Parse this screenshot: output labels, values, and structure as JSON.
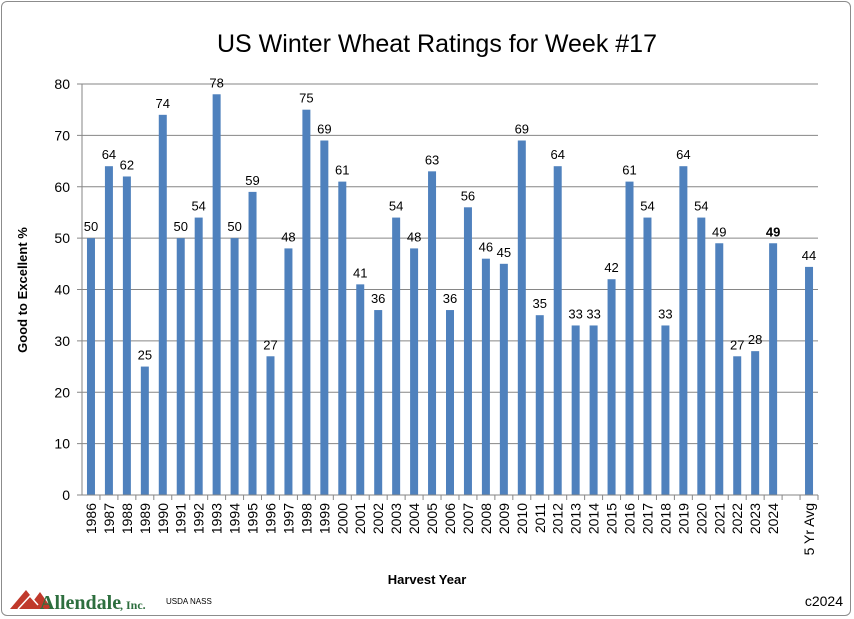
{
  "chart_data": {
    "type": "bar",
    "title": "US Winter Wheat Ratings for Week #17",
    "xlabel": "Harvest Year",
    "ylabel": "Good to Excellent %",
    "ylim": [
      0,
      80
    ],
    "yticks": [
      0,
      10,
      20,
      30,
      40,
      50,
      60,
      70,
      80
    ],
    "grid": true,
    "categories": [
      "1986",
      "1987",
      "1988",
      "1989",
      "1990",
      "1991",
      "1992",
      "1993",
      "1994",
      "1995",
      "1996",
      "1997",
      "1998",
      "1999",
      "2000",
      "2001",
      "2002",
      "2003",
      "2004",
      "2005",
      "2006",
      "2007",
      "2008",
      "2009",
      "2010",
      "2011",
      "2012",
      "2013",
      "2014",
      "2015",
      "2016",
      "2017",
      "2018",
      "2019",
      "2020",
      "2021",
      "2022",
      "2023",
      "2024",
      "",
      "5 Yr Avg"
    ],
    "values": [
      50,
      64,
      62,
      25,
      74,
      50,
      54,
      78,
      50,
      59,
      27,
      48,
      75,
      69,
      61,
      41,
      36,
      54,
      48,
      63,
      36,
      56,
      46,
      45,
      69,
      35,
      64,
      33,
      33,
      42,
      61,
      54,
      33,
      64,
      54,
      49,
      27,
      28,
      49,
      null,
      44.4
    ],
    "data_labels": [
      "50",
      "64",
      "62",
      "25",
      "74",
      "50",
      "54",
      "78",
      "50",
      "59",
      "27",
      "48",
      "75",
      "69",
      "61",
      "41",
      "36",
      "54",
      "48",
      "63",
      "36",
      "56",
      "46",
      "45",
      "69",
      "35",
      "64",
      "33",
      "33",
      "42",
      "61",
      "54",
      "33",
      "64",
      "54",
      "49",
      "27",
      "28",
      "49",
      "",
      "44"
    ],
    "bold_label_category": "2024",
    "bar_color": "#4f81bd"
  },
  "footer": {
    "logo_name": "Allendale",
    "logo_suffix": ", Inc.",
    "source": "USDA NASS",
    "copyright": "c2024"
  }
}
